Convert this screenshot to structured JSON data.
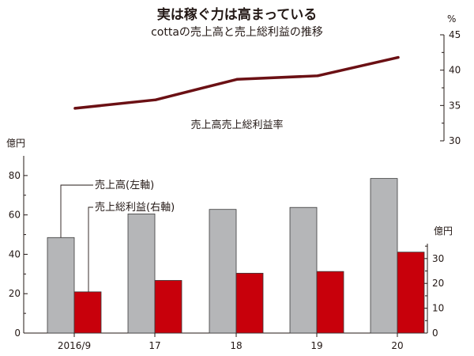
{
  "title": "実は稼ぐ力は高まっている",
  "subtitle": "cottaの売上高と売上総利益の推移",
  "colors": {
    "revenue": "#b5b6b8",
    "gross_profit": "#c8000b",
    "margin_line": "#6b1014",
    "text": "#231815"
  },
  "chart_data": [
    {
      "type": "line",
      "name": "gross-margin-chart",
      "series": [
        {
          "name": "売上高売上総利益率",
          "values": [
            34.6,
            35.8,
            38.7,
            39.2,
            41.8
          ]
        }
      ],
      "categories": [
        "2016/9",
        "17",
        "18",
        "19",
        "20"
      ],
      "unit": "%",
      "ylim": [
        30,
        45
      ],
      "y_ticks": [
        30,
        35,
        40,
        45
      ],
      "axis_side": "right",
      "grid": false
    },
    {
      "type": "bar",
      "name": "sales-profit-chart",
      "categories": [
        "2016/9",
        "17",
        "18",
        "19",
        "20"
      ],
      "series": [
        {
          "name": "売上高(左軸)",
          "axis": "left",
          "values": [
            48.5,
            60.5,
            62.8,
            63.8,
            78.5
          ]
        },
        {
          "name": "売上総利益(右軸)",
          "axis": "right",
          "values": [
            16.6,
            21.2,
            24.1,
            24.8,
            32.6
          ]
        }
      ],
      "left_unit": "億円",
      "right_unit": "億円",
      "left_ylim": [
        0,
        90
      ],
      "left_ticks": [
        0,
        20,
        40,
        60,
        80
      ],
      "right_ylim": [
        0,
        36
      ],
      "right_ticks": [
        0,
        10,
        20,
        30
      ],
      "grid": false
    }
  ]
}
